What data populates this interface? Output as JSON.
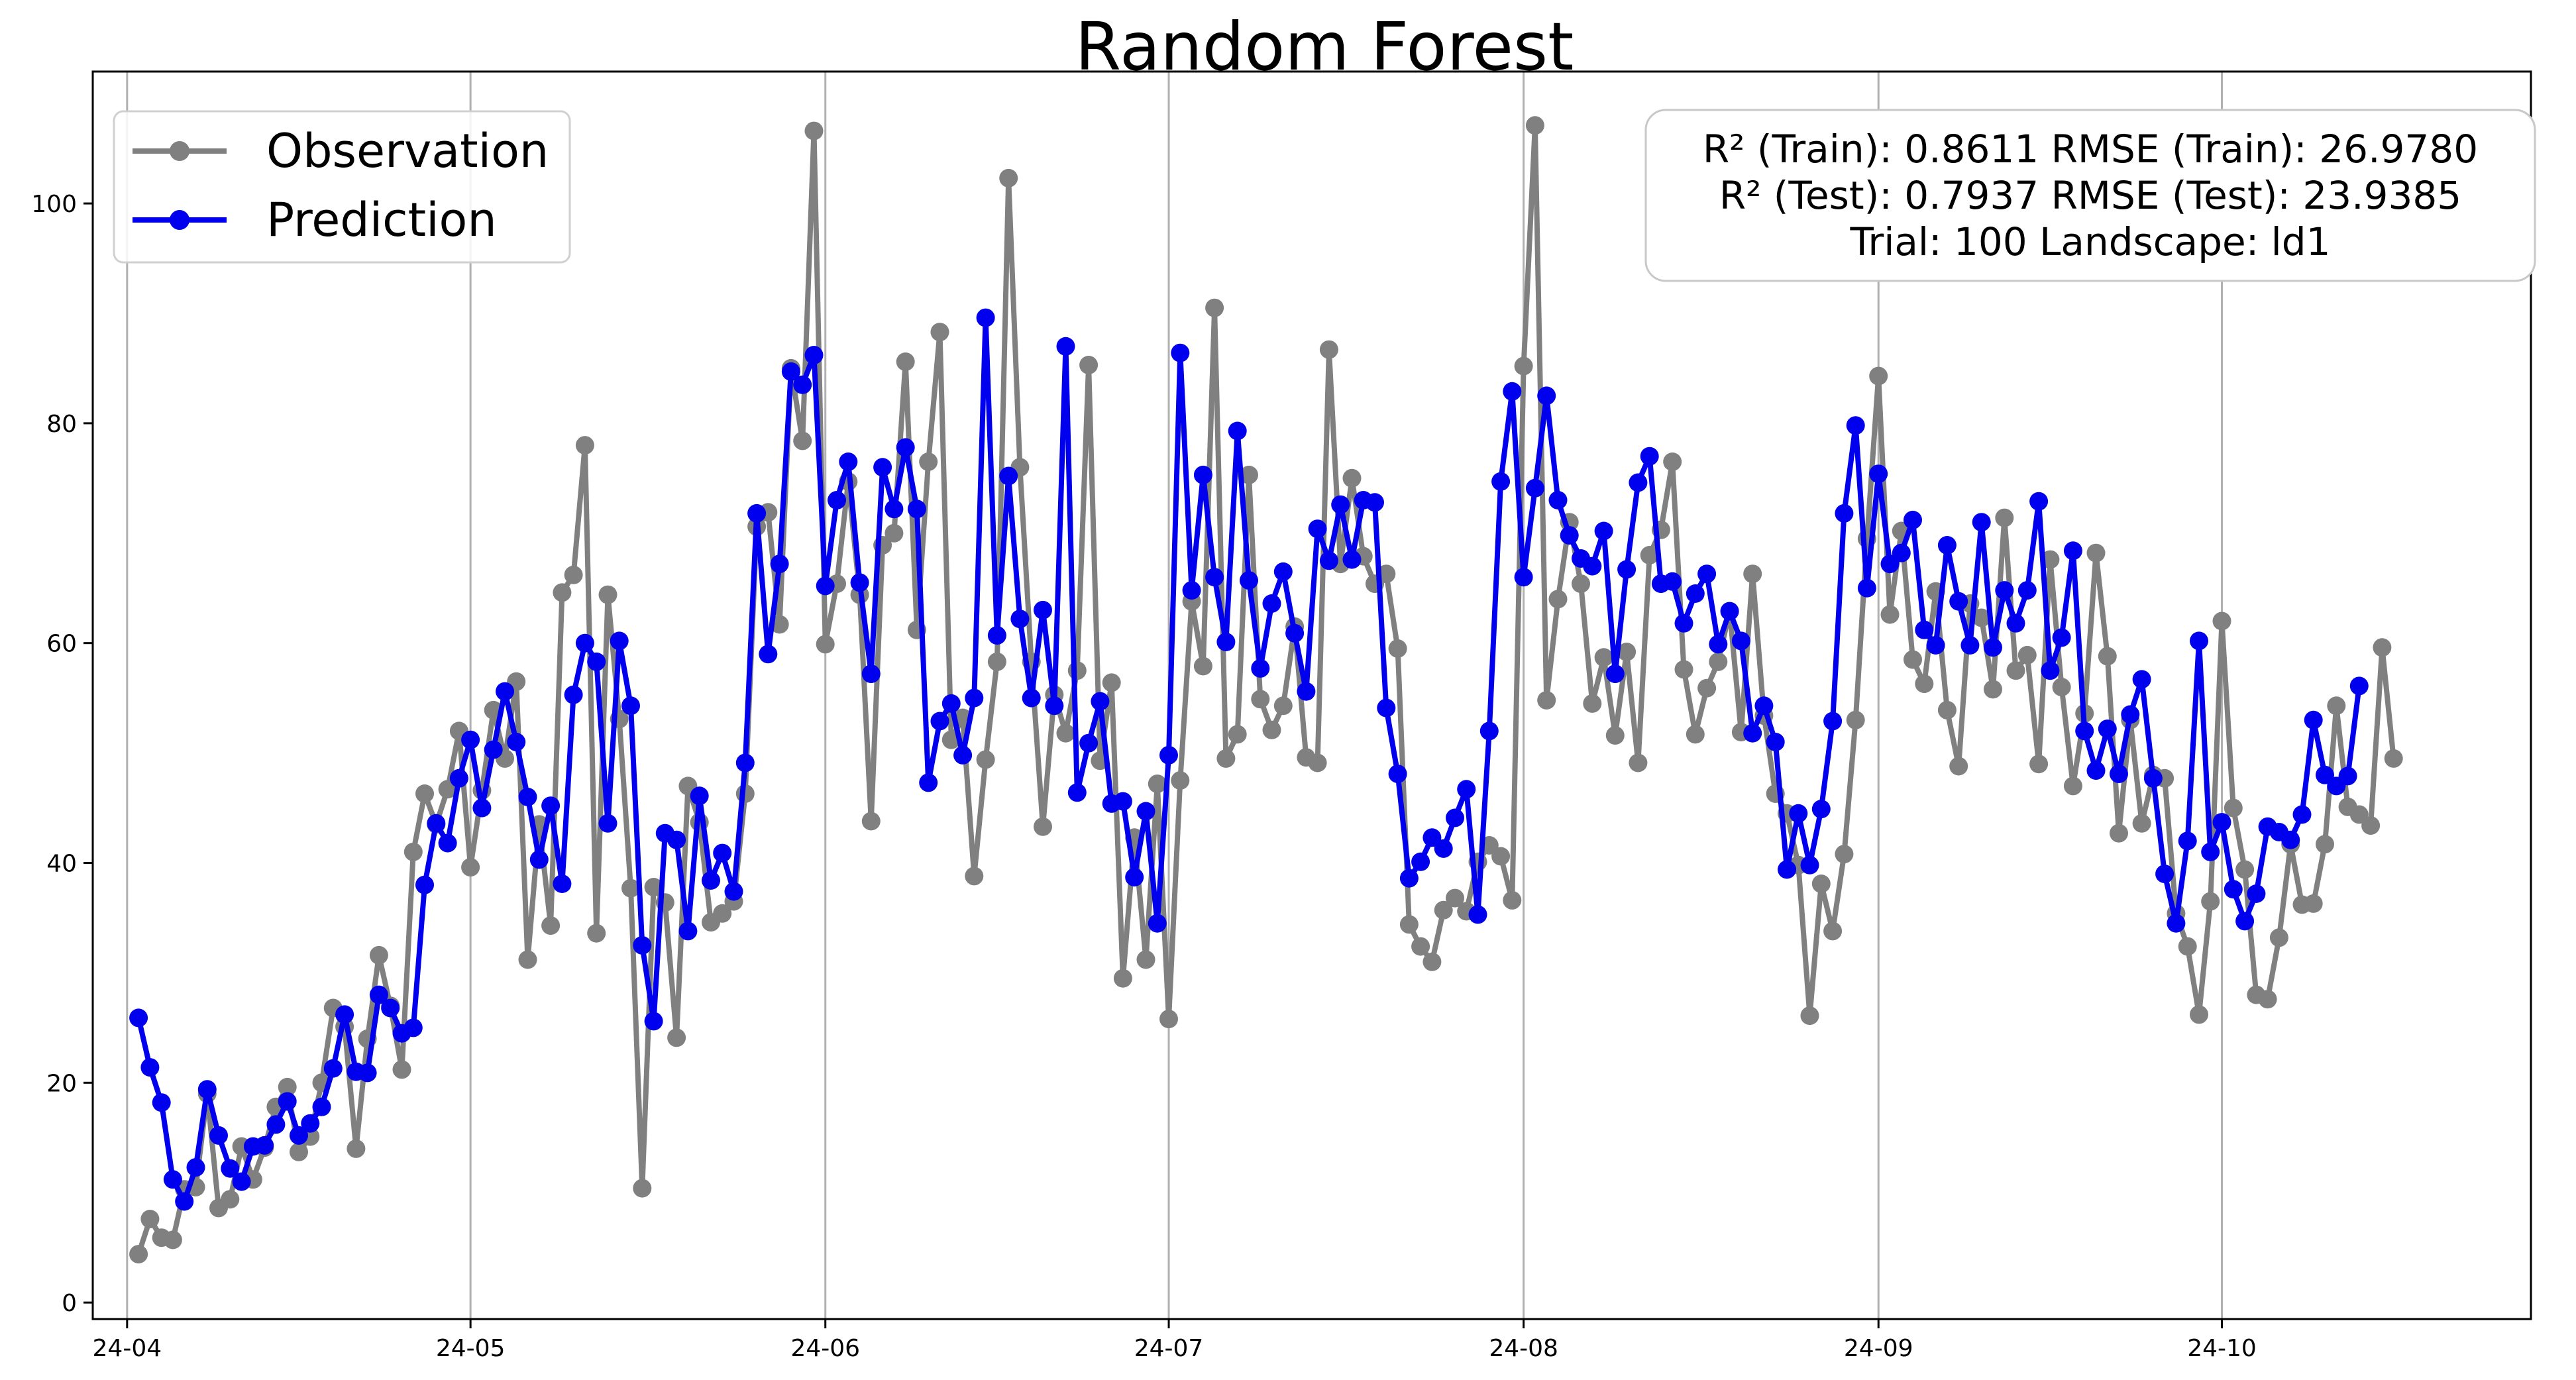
{
  "chart_data": {
    "type": "line",
    "title": "Random Forest",
    "xlabel": "",
    "ylabel": "",
    "x_range": [
      "2024-03-29",
      "2024-10-28"
    ],
    "ylim": [
      -1.5,
      112
    ],
    "y_ticks": [
      0,
      20,
      40,
      60,
      80,
      100
    ],
    "x_ticks": [
      {
        "date": "2024-04-01",
        "label": "24-04"
      },
      {
        "date": "2024-05-01",
        "label": "24-05"
      },
      {
        "date": "2024-06-01",
        "label": "24-06"
      },
      {
        "date": "2024-07-01",
        "label": "24-07"
      },
      {
        "date": "2024-08-01",
        "label": "24-08"
      },
      {
        "date": "2024-09-01",
        "label": "24-09"
      },
      {
        "date": "2024-10-01",
        "label": "24-10"
      }
    ],
    "grid": "x-major",
    "legend_position": "upper-left",
    "start_date": "2024-04-02",
    "series": [
      {
        "name": "Observation",
        "color": "#808080",
        "marker": "circle",
        "values": [
          4.4,
          7.6,
          5.9,
          5.7,
          10.3,
          10.5,
          19,
          8.6,
          9.4,
          14.2,
          11.2,
          14.1,
          17.8,
          19.6,
          13.7,
          15.1,
          20,
          26.8,
          25.1,
          14,
          24,
          31.6,
          27,
          21.2,
          41,
          46.3,
          43.5,
          46.7,
          52,
          39.6,
          46.6,
          53.9,
          49.5,
          56.5,
          31.2,
          43.5,
          34.3,
          64.6,
          66.2,
          78,
          33.6,
          64.4,
          53.1,
          37.7,
          10.4,
          37.8,
          36.4,
          24.1,
          47,
          43.7,
          34.6,
          35.4,
          36.5,
          46.3,
          70.6,
          71.9,
          61.7,
          85,
          78.4,
          106.6,
          59.9,
          65.4,
          74.7,
          64.4,
          43.8,
          68.9,
          70,
          85.6,
          61.2,
          76.5,
          88.3,
          51.2,
          53.2,
          38.8,
          49.4,
          58.3,
          102.3,
          76,
          58.3,
          43.3,
          55.3,
          51.8,
          57.5,
          85.3,
          49.3,
          56.4,
          29.5,
          42.3,
          31.2,
          47.2,
          25.8,
          47.5,
          63.8,
          57.9,
          90.5,
          49.5,
          51.7,
          75.3,
          54.9,
          52.1,
          54.3,
          61.5,
          49.6,
          49.1,
          86.7,
          67.2,
          75,
          67.9,
          65.4,
          66.3,
          59.5,
          34.4,
          32.4,
          31,
          35.7,
          36.8,
          35.6,
          40.1,
          41.6,
          40.6,
          36.6,
          85.2,
          107.1,
          54.8,
          64,
          71,
          65.4,
          54.5,
          58.7,
          51.6,
          59.2,
          49.1,
          68,
          70.3,
          76.5,
          57.6,
          51.7,
          55.9,
          58.3,
          62.9,
          51.9,
          66.3,
          53.4,
          46.3,
          44.5,
          39.8,
          26.1,
          38.1,
          33.8,
          40.8,
          53,
          69.5,
          84.3,
          62.6,
          70.2,
          58.5,
          56.3,
          64.7,
          53.9,
          48.8,
          63.6,
          62.3,
          55.8,
          71.4,
          57.5,
          58.9,
          49,
          67.6,
          56,
          47,
          53.6,
          68.2,
          58.8,
          42.7,
          53,
          43.6,
          48,
          47.7,
          35.4,
          32.4,
          26.2,
          36.5,
          62,
          45,
          39.4,
          28,
          27.6,
          33.2,
          41.7,
          36.2,
          36.3,
          41.7,
          54.3,
          45.1,
          44.4,
          43.4,
          59.6,
          49.5
        ]
      },
      {
        "name": "Prediction",
        "color": "#0000ee",
        "marker": "circle",
        "values": [
          25.9,
          21.4,
          18.2,
          11.2,
          9.2,
          12.3,
          19.4,
          15.2,
          12.2,
          11,
          14.2,
          14.3,
          16.2,
          18.3,
          15.2,
          16.3,
          17.8,
          21.3,
          26.2,
          21,
          20.9,
          28,
          26.8,
          24.5,
          25,
          38,
          43.6,
          41.8,
          47.7,
          51.2,
          45,
          50.3,
          55.6,
          51,
          46,
          40.3,
          45.2,
          38.1,
          55.3,
          60,
          58.3,
          43.6,
          60.2,
          54.3,
          32.5,
          25.6,
          42.7,
          42.1,
          33.8,
          46.1,
          38.4,
          40.9,
          37.4,
          49.1,
          71.8,
          59,
          67.2,
          84.7,
          83.5,
          86.2,
          65.2,
          73,
          76.5,
          65.5,
          57.2,
          76,
          72.2,
          77.8,
          72.2,
          47.3,
          52.9,
          54.5,
          49.8,
          55,
          89.6,
          60.7,
          75.2,
          62.2,
          55,
          63,
          54.3,
          87,
          46.4,
          50.9,
          54.7,
          45.4,
          45.6,
          38.7,
          44.7,
          34.5,
          49.8,
          86.4,
          64.8,
          75.3,
          66,
          60.1,
          79.3,
          65.7,
          57.7,
          63.6,
          66.5,
          60.9,
          55.6,
          70.4,
          67.5,
          72.6,
          67.6,
          73,
          72.8,
          54.1,
          48.1,
          38.6,
          40.1,
          42.3,
          41.3,
          44.1,
          46.7,
          35.3,
          52,
          74.7,
          82.9,
          66,
          74.1,
          82.5,
          73,
          69.8,
          67.7,
          67,
          70.2,
          57.2,
          66.7,
          74.6,
          77,
          65.4,
          65.6,
          61.8,
          64.5,
          66.3,
          59.9,
          62.9,
          60.2,
          51.8,
          54.3,
          51,
          39.4,
          44.5,
          39.8,
          44.9,
          52.9,
          71.8,
          79.8,
          65,
          75.4,
          67.2,
          68.2,
          71.2,
          61.2,
          59.8,
          68.9,
          63.8,
          59.8,
          71,
          59.6,
          64.8,
          61.8,
          64.8,
          72.9,
          57.5,
          60.5,
          68.4,
          52,
          48.4,
          52.2,
          48.1,
          53.5,
          56.7,
          47.7,
          39,
          34.5,
          42,
          60.2,
          41,
          43.7,
          37.6,
          34.7,
          37.2,
          43.3,
          42.8,
          42.1,
          44.4,
          53,
          48,
          47,
          47.9,
          56.1
        ]
      }
    ],
    "annotation": {
      "lines": [
        "R² (Train): 0.8611  RMSE (Train): 26.9780",
        "R² (Test): 0.7937  RMSE (Test): 23.9385",
        "Trial: 100  Landscape: ld1"
      ],
      "position": "upper-right"
    }
  }
}
